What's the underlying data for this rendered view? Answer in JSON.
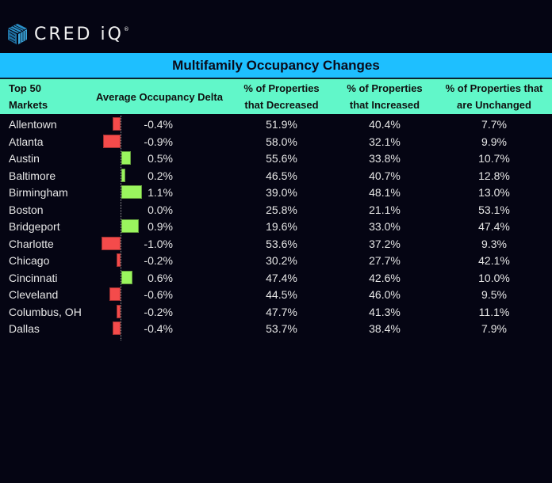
{
  "brand": {
    "name": "CRED iQ",
    "mark": "®",
    "logo_icon": "cube-icon"
  },
  "table": {
    "title": "Multifamily Occupancy Changes",
    "headers": {
      "market": [
        "Top 50",
        "Markets"
      ],
      "delta": "Average Occupancy Delta",
      "decreased": [
        "% of Properties",
        "that Decreased"
      ],
      "increased": [
        "% of Properties",
        "that Increased"
      ],
      "unchanged": [
        "% of Properties that",
        "are Unchanged"
      ]
    },
    "colors": {
      "title_bg": "#1ebfff",
      "header_bg": "#61f7c9",
      "positive": "#9af55e",
      "negative": "#f44b4b",
      "background": "#050513"
    },
    "rows": [
      {
        "market": "Allentown",
        "delta": "-0.4%",
        "decreased": "51.9%",
        "increased": "40.4%",
        "unchanged": "7.7%"
      },
      {
        "market": "Atlanta",
        "delta": "-0.9%",
        "decreased": "58.0%",
        "increased": "32.1%",
        "unchanged": "9.9%"
      },
      {
        "market": "Austin",
        "delta": "0.5%",
        "decreased": "55.6%",
        "increased": "33.8%",
        "unchanged": "10.7%"
      },
      {
        "market": "Baltimore",
        "delta": "0.2%",
        "decreased": "46.5%",
        "increased": "40.7%",
        "unchanged": "12.8%"
      },
      {
        "market": "Birmingham",
        "delta": "1.1%",
        "decreased": "39.0%",
        "increased": "48.1%",
        "unchanged": "13.0%"
      },
      {
        "market": "Boston",
        "delta": "0.0%",
        "decreased": "25.8%",
        "increased": "21.1%",
        "unchanged": "53.1%"
      },
      {
        "market": "Bridgeport",
        "delta": "0.9%",
        "decreased": "19.6%",
        "increased": "33.0%",
        "unchanged": "47.4%"
      },
      {
        "market": "Charlotte",
        "delta": "-1.0%",
        "decreased": "53.6%",
        "increased": "37.2%",
        "unchanged": "9.3%"
      },
      {
        "market": "Chicago",
        "delta": "-0.2%",
        "decreased": "30.2%",
        "increased": "27.7%",
        "unchanged": "42.1%"
      },
      {
        "market": "Cincinnati",
        "delta": "0.6%",
        "decreased": "47.4%",
        "increased": "42.6%",
        "unchanged": "10.0%"
      },
      {
        "market": "Cleveland",
        "delta": "-0.6%",
        "decreased": "44.5%",
        "increased": "46.0%",
        "unchanged": "9.5%"
      },
      {
        "market": "Columbus, OH",
        "delta": "-0.2%",
        "decreased": "47.7%",
        "increased": "41.3%",
        "unchanged": "11.1%"
      },
      {
        "market": "Dallas",
        "delta": "-0.4%",
        "decreased": "53.7%",
        "increased": "38.4%",
        "unchanged": "7.9%"
      }
    ]
  },
  "chart_data": {
    "type": "table",
    "title": "Multifamily Occupancy Changes",
    "columns": [
      "Top 50 Markets",
      "Average Occupancy Delta",
      "% of Properties that Decreased",
      "% of Properties that Increased",
      "% of Properties that are Unchanged"
    ],
    "categories": [
      "Allentown",
      "Atlanta",
      "Austin",
      "Baltimore",
      "Birmingham",
      "Boston",
      "Bridgeport",
      "Charlotte",
      "Chicago",
      "Cincinnati",
      "Cleveland",
      "Columbus, OH",
      "Dallas"
    ],
    "series": [
      {
        "name": "Average Occupancy Delta (%)",
        "type": "bar",
        "values": [
          -0.4,
          -0.9,
          0.5,
          0.2,
          1.1,
          0.0,
          0.9,
          -1.0,
          -0.2,
          0.6,
          -0.6,
          -0.2,
          -0.4
        ]
      },
      {
        "name": "% of Properties that Decreased",
        "values": [
          51.9,
          58.0,
          55.6,
          46.5,
          39.0,
          25.8,
          19.6,
          53.6,
          30.2,
          47.4,
          44.5,
          47.7,
          53.7
        ]
      },
      {
        "name": "% of Properties that Increased",
        "values": [
          40.4,
          32.1,
          33.8,
          40.7,
          48.1,
          21.1,
          33.0,
          37.2,
          27.7,
          42.6,
          46.0,
          41.3,
          38.4
        ]
      },
      {
        "name": "% of Properties that are Unchanged",
        "values": [
          7.7,
          9.9,
          10.7,
          12.8,
          13.0,
          53.1,
          47.4,
          9.3,
          42.1,
          10.0,
          9.5,
          11.1,
          7.9
        ]
      }
    ],
    "delta_bar_range": [
      -1.1,
      1.1
    ]
  }
}
